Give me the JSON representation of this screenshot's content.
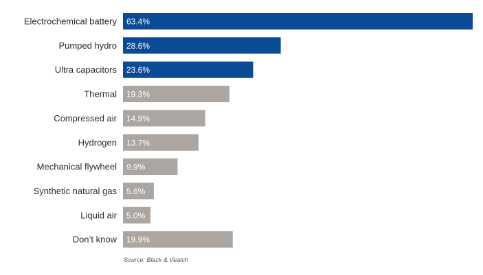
{
  "chart_data": {
    "type": "bar",
    "orientation": "horizontal",
    "categories": [
      "Electrochemical battery",
      "Pumped hydro",
      "Ultra capacitors",
      "Thermal",
      "Compressed air",
      "Hydrogen",
      "Mechanical flywheel",
      "Synthetic natural gas",
      "Liquid air",
      "Don’t know"
    ],
    "values": [
      63.4,
      28.6,
      23.6,
      19.3,
      14.9,
      13.7,
      9.9,
      5.6,
      5.0,
      19.9
    ],
    "value_labels": [
      "63.4%",
      "28.6%",
      "23.6%",
      "19.3%",
      "14.9%",
      "13.7%",
      "9.9%",
      "5.6%",
      "5.0%",
      "19.9%"
    ],
    "highlighted": [
      true,
      true,
      true,
      false,
      false,
      false,
      false,
      false,
      false,
      false
    ],
    "title": "",
    "xlabel": "",
    "ylabel": "",
    "xlim": [
      0,
      64
    ],
    "grid": false,
    "legend": "none",
    "colors": {
      "highlight": "#0b4a94",
      "default": "#aba6a1"
    }
  },
  "source": "Source: Black & Veatch"
}
